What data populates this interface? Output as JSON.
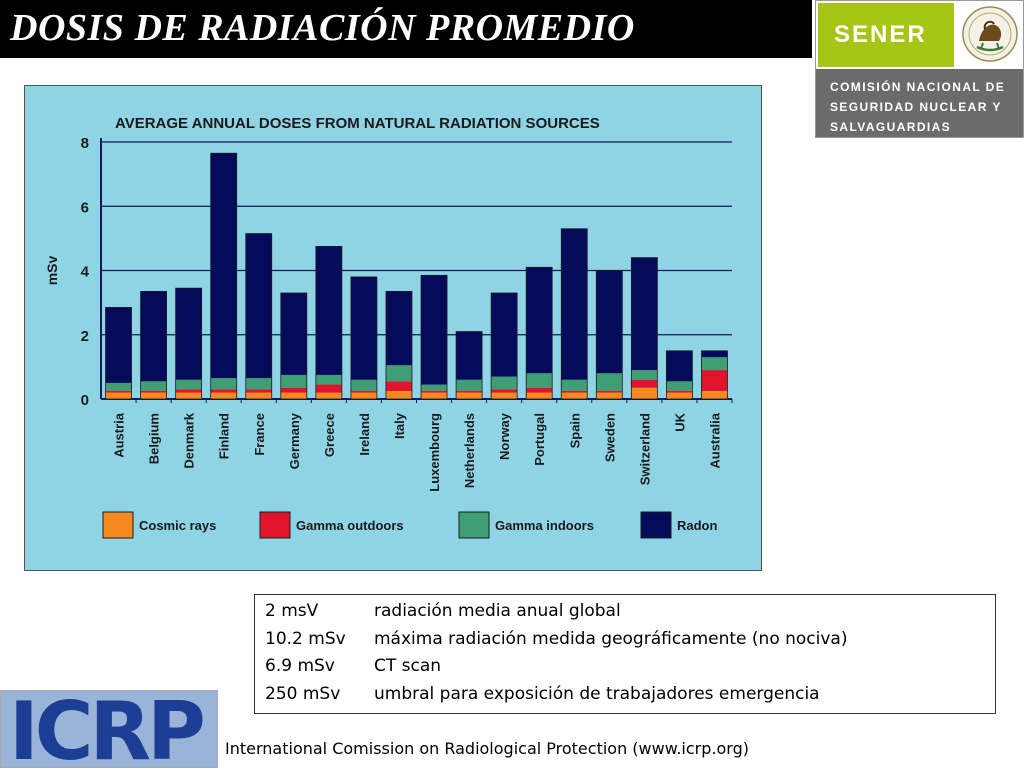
{
  "slide": {
    "title": "DOSIS DE RADIACIÓN PROMEDIO",
    "footer": "International Comission on Radiological Protection (www.icrp.org)"
  },
  "logo": {
    "brand": "SENER",
    "org_lines": [
      "COMISIÓN NACIONAL DE",
      "SEGURIDAD NUCLEAR Y",
      "SALVAGUARDIAS"
    ],
    "icrp": "ICRP"
  },
  "info": [
    {
      "value": "2 msV",
      "text": "radiación media anual global"
    },
    {
      "value": "10.2 mSv",
      "text": "máxima radiación medida geográficamente (no nociva)"
    },
    {
      "value": "6.9 mSv",
      "text": "CT scan"
    },
    {
      "value": "250 mSv",
      "text": "umbral para exposición de trabajadores emergencia"
    }
  ],
  "chart_data": {
    "type": "bar",
    "stacked": true,
    "title": "AVERAGE ANNUAL DOSES FROM NATURAL RADIATION SOURCES",
    "xlabel": "",
    "ylabel": "mSv",
    "ylim": [
      0,
      8
    ],
    "yticks": [
      0,
      2,
      4,
      6,
      8
    ],
    "grid": true,
    "legend_position": "bottom",
    "categories": [
      "Austria",
      "Belgium",
      "Denmark",
      "Finland",
      "France",
      "Germany",
      "Greece",
      "Ireland",
      "Italy",
      "Luxembourg",
      "Netherlands",
      "Norway",
      "Portugal",
      "Spain",
      "Sweden",
      "Switzerland",
      "UK",
      "Australia"
    ],
    "series": [
      {
        "name": "Cosmic rays",
        "color": "#f5891f",
        "values": [
          0.2,
          0.2,
          0.2,
          0.2,
          0.2,
          0.2,
          0.2,
          0.2,
          0.25,
          0.2,
          0.2,
          0.2,
          0.2,
          0.2,
          0.2,
          0.35,
          0.2,
          0.25
        ]
      },
      {
        "name": "Gamma outdoors",
        "color": "#e0142d",
        "values": [
          0.05,
          0.05,
          0.1,
          0.1,
          0.1,
          0.15,
          0.25,
          0.05,
          0.3,
          0.05,
          0.05,
          0.1,
          0.15,
          0.05,
          0.05,
          0.25,
          0.05,
          0.65
        ]
      },
      {
        "name": "Gamma indoors",
        "color": "#3f9e73",
        "values": [
          0.25,
          0.3,
          0.3,
          0.35,
          0.35,
          0.4,
          0.3,
          0.35,
          0.5,
          0.2,
          0.35,
          0.4,
          0.45,
          0.35,
          0.55,
          0.3,
          0.3,
          0.4
        ]
      },
      {
        "name": "Radon",
        "color": "#050a5a",
        "values": [
          2.35,
          2.8,
          2.85,
          7.0,
          4.5,
          2.55,
          4.0,
          3.2,
          2.3,
          3.4,
          1.5,
          2.6,
          3.3,
          4.7,
          3.2,
          3.5,
          0.95,
          0.2
        ]
      }
    ]
  }
}
